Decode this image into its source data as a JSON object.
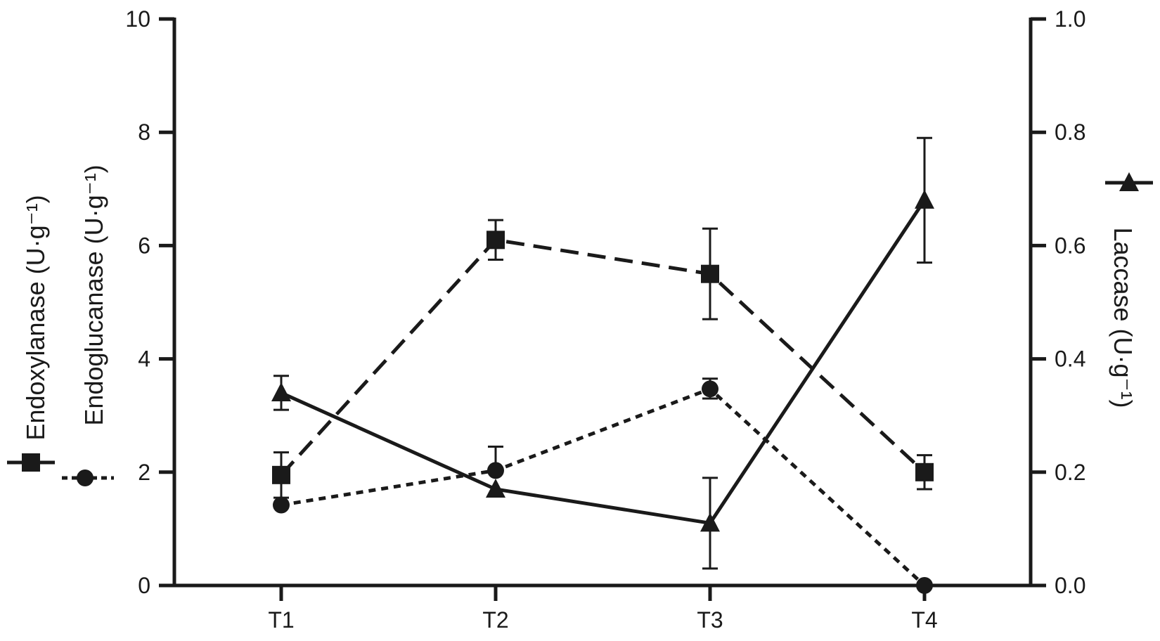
{
  "chart_data": {
    "type": "line",
    "categories": [
      "T1",
      "T2",
      "T3",
      "T4"
    ],
    "left_axis": {
      "ylim": [
        0,
        10
      ],
      "ticks": [
        "0",
        "2",
        "4",
        "6",
        "8",
        "10"
      ],
      "labels": [
        "Endoxylanase (U·g⁻¹)",
        "Endoglucanase (U·g⁻¹)"
      ]
    },
    "right_axis": {
      "ylim": [
        0,
        1.0
      ],
      "ticks": [
        "0.0",
        "0.2",
        "0.4",
        "0.6",
        "0.8",
        "1.0"
      ],
      "label": "Laccase (U·g⁻¹)"
    },
    "series": [
      {
        "key": "endoxylanase",
        "axis": "left",
        "marker": "square",
        "line_style": "long-dash",
        "values": [
          1.95,
          6.1,
          5.5,
          2.0
        ],
        "error_low": [
          1.55,
          5.75,
          4.7,
          1.7
        ],
        "error_high": [
          2.35,
          6.45,
          6.3,
          2.3
        ]
      },
      {
        "key": "endoglucanase",
        "axis": "left",
        "marker": "circle",
        "line_style": "short-dash",
        "values": [
          1.42,
          2.03,
          3.47,
          0.0
        ],
        "error_low": [
          null,
          null,
          3.3,
          null
        ],
        "error_high": [
          null,
          2.45,
          3.65,
          null
        ]
      },
      {
        "key": "laccase",
        "axis": "right",
        "marker": "triangle",
        "line_style": "solid",
        "values": [
          0.34,
          0.17,
          0.11,
          0.68
        ],
        "error_low": [
          0.31,
          null,
          0.03,
          0.57
        ],
        "error_high": [
          0.37,
          null,
          0.19,
          0.79
        ]
      }
    ]
  }
}
